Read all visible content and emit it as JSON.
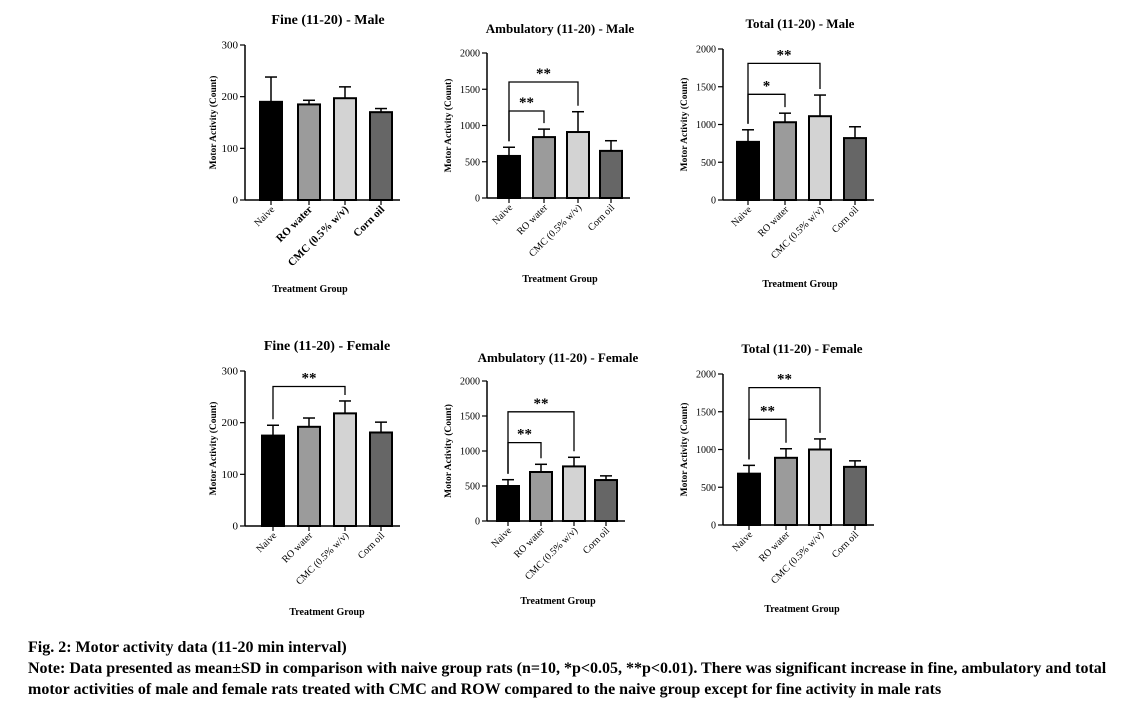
{
  "figure": {
    "caption_title": "Fig. 2: Motor activity data (11-20 min interval)",
    "caption_note": "Note: Data presented as mean±SD in comparison with naive group rats (n=10, *p<0.05, **p<0.01). There was significant increase in fine, ambulatory and total motor activities of male and female rats treated with CMC and ROW compared to the naive group except for fine activity in male rats"
  },
  "colors": {
    "naive": "#000000",
    "ro_water": "#9b9b9b",
    "cmc": "#d3d3d3",
    "corn_oil": "#666666"
  },
  "chart_data": [
    {
      "type": "bar",
      "title": "Fine (11-20) - Male",
      "ylabel": "Motor Activity (Count)",
      "xlabel": "Treatment Group",
      "ylim": [
        0,
        300
      ],
      "yticks": [
        0,
        100,
        200,
        300
      ],
      "categories": [
        "Naive",
        "RO water",
        "CMC (0.5% w/v)",
        "Corn oil"
      ],
      "bold_tick_labels": true,
      "values": [
        190,
        185,
        197,
        170
      ],
      "errors": [
        48,
        8,
        22,
        7
      ],
      "significance": []
    },
    {
      "type": "bar",
      "title": "Ambulatory (11-20) - Male",
      "ylabel": "Motor Activity (Count)",
      "xlabel": "Treatment Group",
      "ylim": [
        0,
        2000
      ],
      "yticks": [
        0,
        500,
        1000,
        1500,
        2000
      ],
      "categories": [
        "Naive",
        "RO water",
        "CMC (0.5% w/v)",
        "Corn oil"
      ],
      "values": [
        580,
        840,
        910,
        650
      ],
      "errors": [
        120,
        110,
        280,
        140
      ],
      "significance": [
        {
          "from": 0,
          "to": 1,
          "label": "**",
          "y": 1200
        },
        {
          "from": 0,
          "to": 2,
          "label": "**",
          "y": 1600
        }
      ]
    },
    {
      "type": "bar",
      "title": "Total (11-20) - Male",
      "ylabel": "Motor Activity (Count)",
      "xlabel": "Treatment Group",
      "ylim": [
        0,
        2000
      ],
      "yticks": [
        0,
        500,
        1000,
        1500,
        2000
      ],
      "categories": [
        "Naive",
        "RO water",
        "CMC (0.5% w/v)",
        "Corn oil"
      ],
      "values": [
        770,
        1030,
        1110,
        820
      ],
      "errors": [
        160,
        120,
        280,
        150
      ],
      "significance": [
        {
          "from": 0,
          "to": 1,
          "label": "*",
          "y": 1400
        },
        {
          "from": 0,
          "to": 2,
          "label": "**",
          "y": 1810
        }
      ]
    },
    {
      "type": "bar",
      "title": "Fine (11-20) - Female",
      "ylabel": "Motor Activity (Count)",
      "xlabel": "Treatment Group",
      "ylim": [
        0,
        300
      ],
      "yticks": [
        0,
        100,
        200,
        300
      ],
      "categories": [
        "Naive",
        "RO water",
        "CMC (0.5% w/v)",
        "Corn oil"
      ],
      "values": [
        175,
        192,
        218,
        181
      ],
      "errors": [
        20,
        17,
        24,
        20
      ],
      "significance": [
        {
          "from": 0,
          "to": 2,
          "label": "**",
          "y": 270
        }
      ]
    },
    {
      "type": "bar",
      "title": "Ambulatory (11-20) - Female",
      "ylabel": "Motor Activity (Count)",
      "xlabel": "Treatment Group",
      "ylim": [
        0,
        2000
      ],
      "yticks": [
        0,
        500,
        1000,
        1500,
        2000
      ],
      "categories": [
        "Naive",
        "RO water",
        "CMC (0.5% w/v)",
        "Corn oil"
      ],
      "values": [
        500,
        700,
        780,
        585
      ],
      "errors": [
        90,
        110,
        130,
        60
      ],
      "significance": [
        {
          "from": 0,
          "to": 1,
          "label": "**",
          "y": 1120
        },
        {
          "from": 0,
          "to": 2,
          "label": "**",
          "y": 1560
        }
      ]
    },
    {
      "type": "bar",
      "title": "Total (11-20) - Female",
      "ylabel": "Motor Activity (Count)",
      "xlabel": "Treatment Group",
      "ylim": [
        0,
        2000
      ],
      "yticks": [
        0,
        500,
        1000,
        1500,
        2000
      ],
      "categories": [
        "Naive",
        "RO water",
        "CMC (0.5% w/v)",
        "Corn oil"
      ],
      "values": [
        680,
        890,
        1000,
        770
      ],
      "errors": [
        110,
        120,
        140,
        80
      ],
      "significance": [
        {
          "from": 0,
          "to": 1,
          "label": "**",
          "y": 1400
        },
        {
          "from": 0,
          "to": 2,
          "label": "**",
          "y": 1820
        }
      ]
    }
  ]
}
